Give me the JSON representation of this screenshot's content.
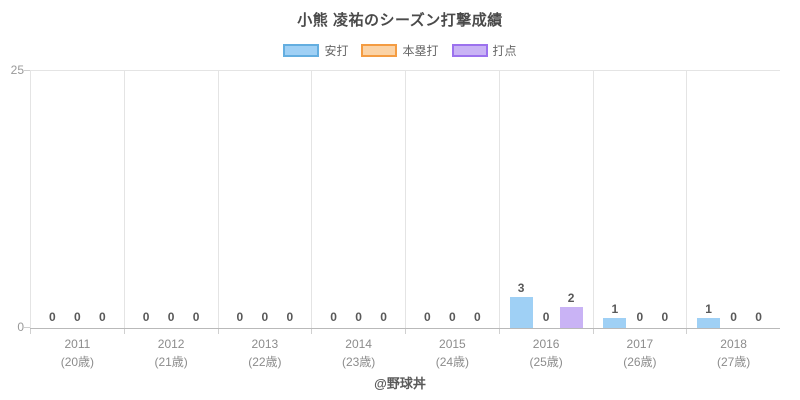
{
  "chart_data": {
    "type": "bar",
    "title": "小熊 凌祐のシーズン打撃成績",
    "caption": "@野球丼",
    "categories": [
      "2011",
      "2012",
      "2013",
      "2014",
      "2015",
      "2016",
      "2017",
      "2018"
    ],
    "category_sublabels": [
      "(20歳)",
      "(21歳)",
      "(22歳)",
      "(23歳)",
      "(24歳)",
      "(25歳)",
      "(26歳)",
      "(27歳)"
    ],
    "series": [
      {
        "name": "安打",
        "fill": "#9FD0F5",
        "border": "#64AEE0",
        "values": [
          0,
          0,
          0,
          0,
          0,
          3,
          1,
          1
        ]
      },
      {
        "name": "本塁打",
        "fill": "#FBD3A6",
        "border": "#F49C42",
        "values": [
          0,
          0,
          0,
          0,
          0,
          0,
          0,
          0
        ]
      },
      {
        "name": "打点",
        "fill": "#C9B3F5",
        "border": "#9C72EE",
        "values": [
          0,
          0,
          0,
          0,
          0,
          2,
          0,
          0
        ]
      }
    ],
    "ylim": [
      0,
      25
    ],
    "yticks": {
      "top": "25",
      "zero": "0"
    },
    "legend_position": "top",
    "grid": "vertical-between-groups"
  }
}
